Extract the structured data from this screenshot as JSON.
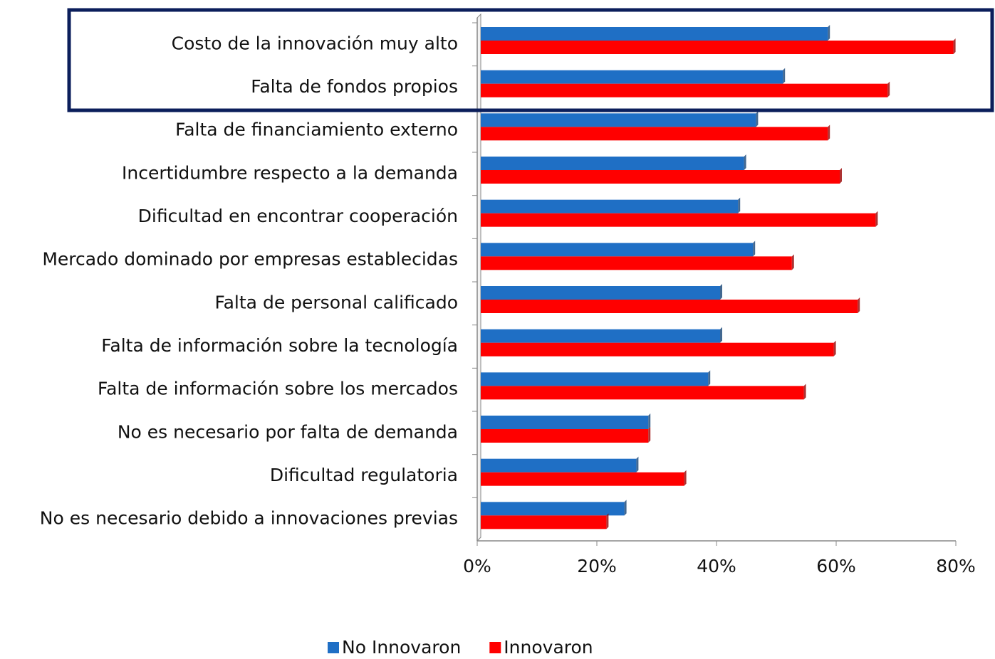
{
  "chart_data": {
    "type": "hbar",
    "categories": [
      "Costo de la innovación muy alto",
      "Falta de fondos propios",
      "Falta de financiamiento externo",
      "Incertidumbre respecto a la demanda",
      "Dificultad en encontrar cooperación",
      "Mercado dominado por empresas establecidas",
      "Falta de personal calificado",
      "Falta de información sobre la tecnología",
      "Falta de información sobre los mercados",
      "No es necesario por falta de demanda",
      "Dificultad regulatoria",
      "No es necesario debido a innovaciones previas"
    ],
    "series": [
      {
        "name": "No Innovaron",
        "color": "#1f6fc5",
        "values": [
          58,
          50.5,
          46,
          44,
          43,
          45.5,
          40,
          40,
          38,
          28,
          26,
          24
        ]
      },
      {
        "name": "Innovaron",
        "color": "#ff0000",
        "values": [
          79,
          68,
          58,
          60,
          66,
          52,
          63,
          59,
          54,
          28,
          34,
          21
        ]
      }
    ],
    "xlim": [
      0,
      80
    ],
    "xticks": [
      {
        "value": 0,
        "label": "0%"
      },
      {
        "value": 20,
        "label": "20%"
      },
      {
        "value": 40,
        "label": "40%"
      },
      {
        "value": 60,
        "label": "60%"
      },
      {
        "value": 80,
        "label": "80%"
      }
    ],
    "legend": "bottom"
  }
}
